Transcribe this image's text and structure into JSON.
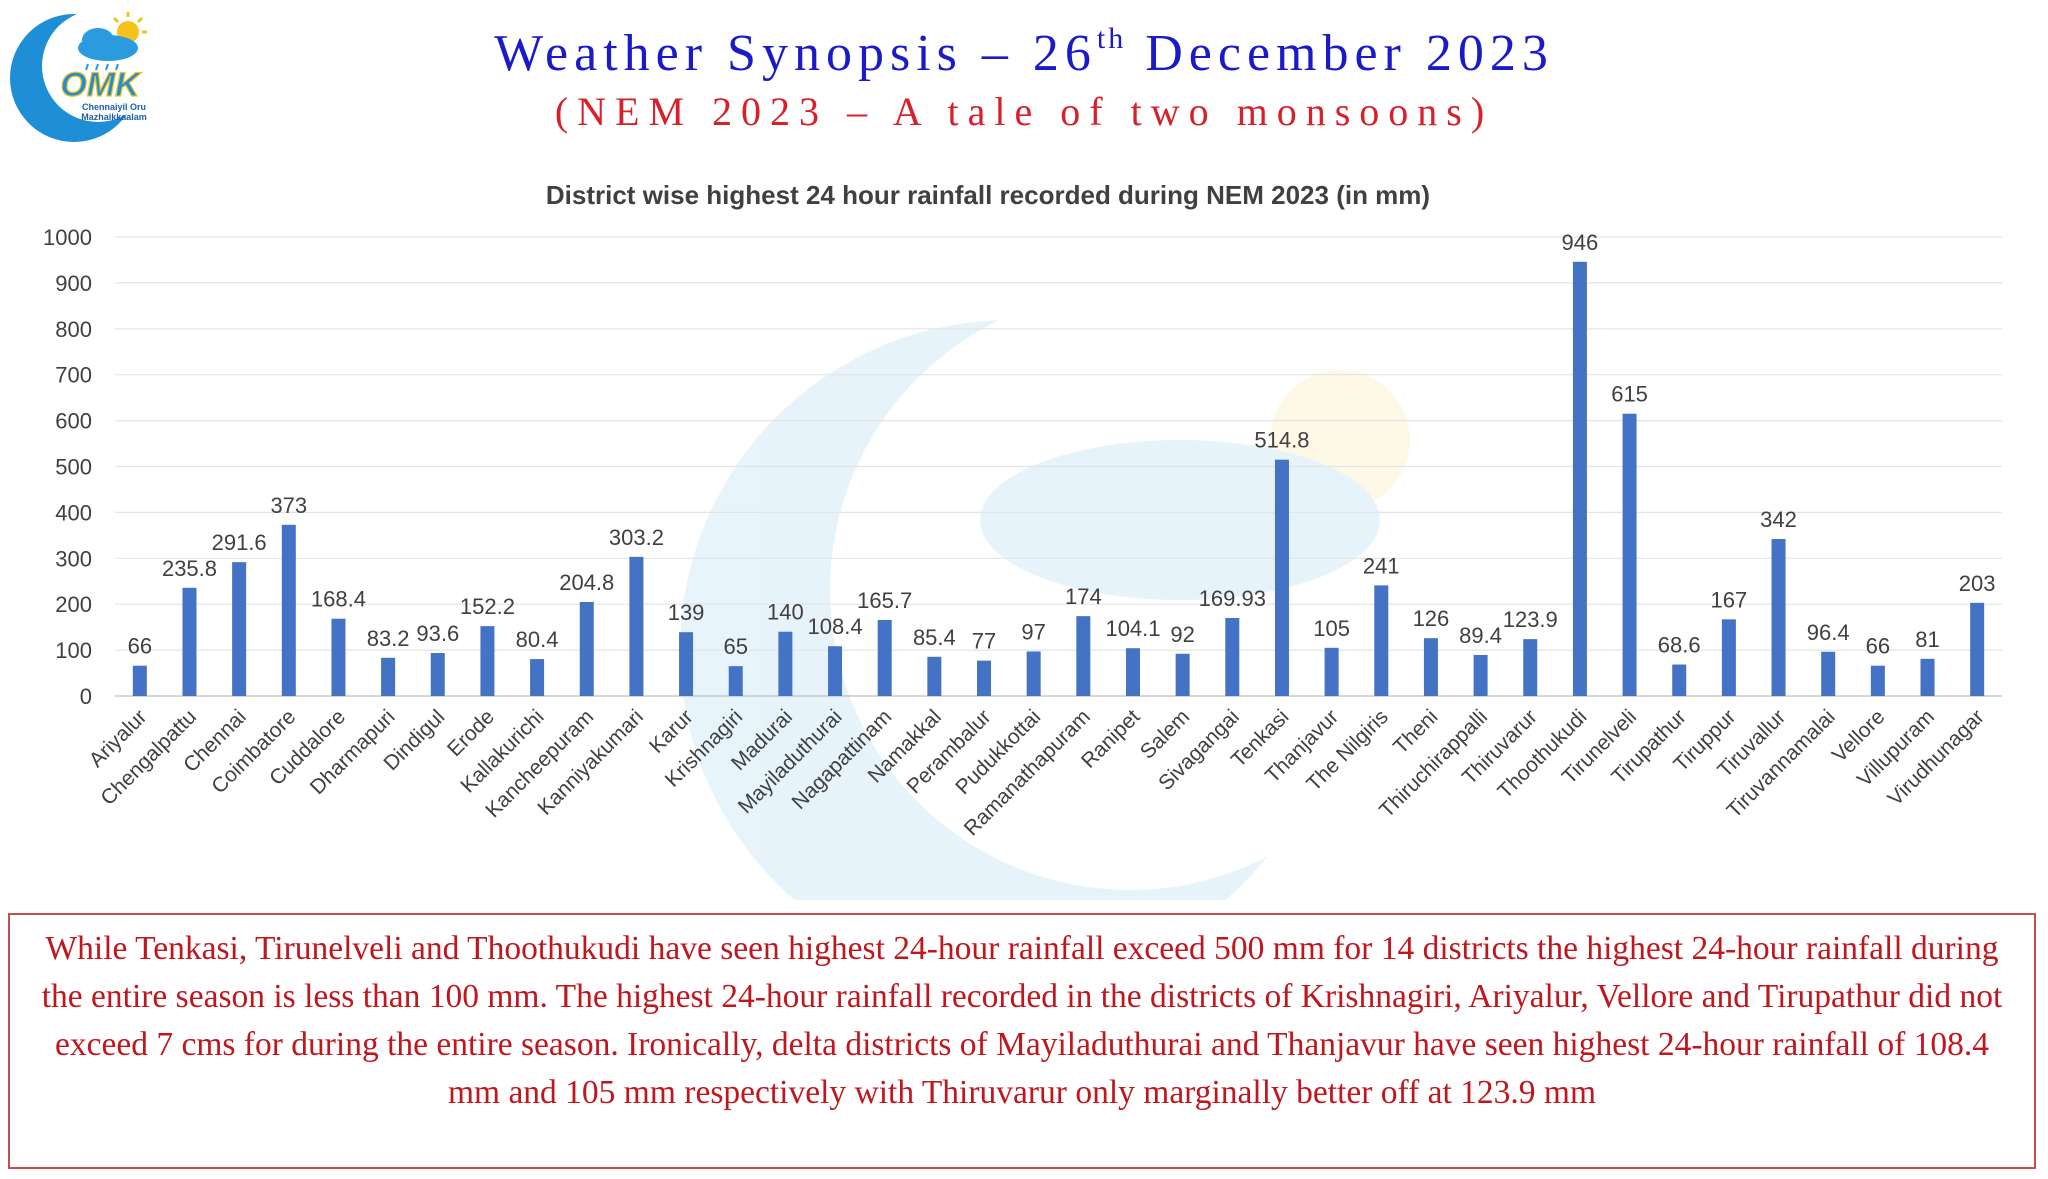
{
  "header": {
    "title_main": "Weather Synopsis – 26",
    "title_sup": "th",
    "title_end": " December 2023",
    "subtitle": "(NEM 2023 – A tale of two monsoons)",
    "logo_text_1": "Chennaiyil Oru",
    "logo_text_2": "Mazhaikkaalam",
    "logo_letters": "OMK"
  },
  "chart_data": {
    "type": "bar",
    "title": "District wise highest 24 hour rainfall recorded during NEM 2023 (in mm)",
    "xlabel": "",
    "ylabel": "",
    "ylim": [
      0,
      1000
    ],
    "yticks": [
      0,
      100,
      200,
      300,
      400,
      500,
      600,
      700,
      800,
      900,
      1000
    ],
    "grid": true,
    "legend": "none",
    "color": "#4472c4",
    "categories": [
      "Ariyalur",
      "Chengalpattu",
      "Chennai",
      "Coimbatore",
      "Cuddalore",
      "Dharmapuri",
      "Dindigul",
      "Erode",
      "Kallakurichi",
      "Kancheepuram",
      "Kanniyakumari",
      "Karur",
      "Krishnagiri",
      "Madurai",
      "Mayiladuthurai",
      "Nagapattinam",
      "Namakkal",
      "Perambalur",
      "Pudukkottai",
      "Ramanathapuram",
      "Ranipet",
      "Salem",
      "Sivagangai",
      "Tenkasi",
      "Thanjavur",
      "The Nilgiris",
      "Theni",
      "Thiruchirappalli",
      "Thiruvarur",
      "Thoothukudi",
      "Tirunelveli",
      "Tirupathur",
      "Tiruppur",
      "Tiruvallur",
      "Tiruvannamalai",
      "Vellore",
      "Villupuram",
      "Virudhunagar"
    ],
    "values": [
      66,
      235.8,
      291.6,
      373,
      168.4,
      83.2,
      93.6,
      152.2,
      80.4,
      204.8,
      303.2,
      139,
      65,
      140,
      108.4,
      165.7,
      85.4,
      77,
      97,
      174,
      104.1,
      92,
      169.93,
      514.8,
      105,
      241,
      126,
      89.4,
      123.9,
      946,
      615,
      68.6,
      167,
      342,
      96.4,
      66,
      81,
      203
    ],
    "labels": [
      "66",
      "235.8",
      "291.6",
      "373",
      "168.4",
      "83.2",
      "93.6",
      "152.2",
      "80.4",
      "204.8",
      "303.2",
      "139",
      "65",
      "140",
      "108.4",
      "165.7",
      "85.4",
      "77",
      "97",
      "174",
      "104.1",
      "92",
      "169.93",
      "514.8",
      "105",
      "241",
      "126",
      "89.4",
      "123.9",
      "946",
      "615",
      "68.6",
      "167",
      "342",
      "96.4",
      "66",
      "81",
      "203"
    ]
  },
  "note": {
    "text": "While Tenkasi, Tirunelveli and Thoothukudi have seen highest 24-hour rainfall exceed 500 mm for 14 districts the highest 24-hour rainfall during the entire season is less than 100 mm. The highest 24-hour rainfall recorded in the districts of Krishnagiri, Ariyalur, Vellore and Tirupathur did not exceed 7 cms for during the entire season. Ironically, delta districts of Mayiladuthurai and Thanjavur have seen highest 24-hour rainfall of 108.4 mm and 105 mm respectively with Thiruvarur only marginally better off at 123.9 mm"
  }
}
